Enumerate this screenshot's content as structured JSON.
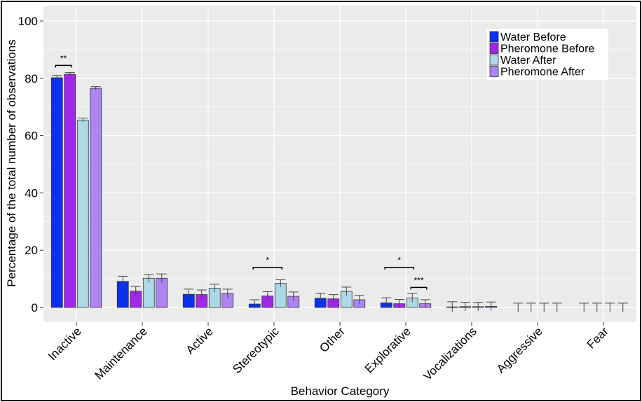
{
  "chart_data": {
    "type": "bar",
    "title": "",
    "xlabel": "Behavior Category",
    "ylabel": "Percentage of the total number of observations",
    "ylim": [
      -4,
      104
    ],
    "yticks": [
      0,
      20,
      40,
      60,
      80,
      100
    ],
    "grid": true,
    "legend_position": "top-right",
    "categories": [
      "Inactive",
      "Maintenance",
      "Active",
      "Stereotypic",
      "Other",
      "Explorative",
      "Vocalizations",
      "Aggressive",
      "Fear"
    ],
    "series": [
      {
        "name": "Water Before",
        "color": "#0d2ff0",
        "values": [
          80.2,
          9.1,
          4.6,
          1.2,
          3.2,
          1.6,
          0.2,
          0.0,
          0.0
        ],
        "errors": [
          0.8,
          1.8,
          1.8,
          1.5,
          1.7,
          1.8,
          1.8,
          1.5,
          1.5
        ]
      },
      {
        "name": "Pheromone Before",
        "color": "#a127ec",
        "values": [
          81.4,
          5.7,
          4.5,
          4.0,
          3.0,
          1.3,
          0.3,
          0.0,
          0.0
        ],
        "errors": [
          0.6,
          1.6,
          1.6,
          1.5,
          1.5,
          1.5,
          1.5,
          1.5,
          1.5
        ]
      },
      {
        "name": "Water After",
        "color": "#add8e6",
        "values": [
          65.4,
          10.2,
          6.7,
          8.4,
          5.6,
          3.3,
          0.3,
          0.0,
          0.0
        ],
        "errors": [
          0.7,
          1.3,
          1.4,
          1.3,
          1.5,
          1.6,
          1.5,
          1.5,
          1.5
        ]
      },
      {
        "name": "Pheromone After",
        "color": "#ac84f4",
        "values": [
          76.5,
          10.2,
          4.9,
          3.9,
          2.7,
          1.3,
          0.4,
          0.0,
          0.0
        ],
        "errors": [
          0.6,
          1.5,
          1.5,
          1.5,
          1.5,
          1.4,
          1.5,
          1.5,
          1.5
        ]
      }
    ],
    "annotations": [
      {
        "category": "Inactive",
        "from_series": 0,
        "to_series": 1,
        "y": 84.5,
        "label": "**"
      },
      {
        "category": "Stereotypic",
        "from_series": 0,
        "to_series": 2,
        "y": 14.0,
        "label": "*"
      },
      {
        "category": "Explorative",
        "from_series": 0,
        "to_series": 2,
        "y": 14.0,
        "label": "*"
      },
      {
        "category": "Explorative",
        "from_series": 2,
        "to_series": 3,
        "y": 7.0,
        "label": "***"
      }
    ]
  }
}
